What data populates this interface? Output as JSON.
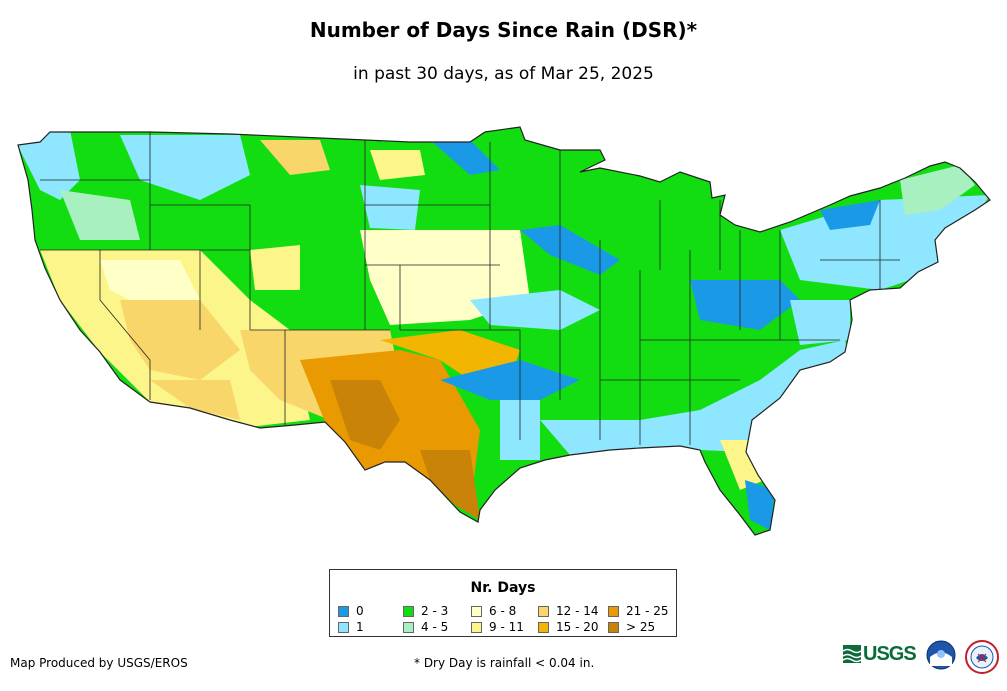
{
  "title": "Number of Days Since Rain (DSR)*",
  "subtitle": "in past 30 days, as of Mar 25, 2025",
  "legend": {
    "title": "Nr. Days",
    "items": [
      {
        "label": "0",
        "color": "#1a9ae6"
      },
      {
        "label": "1",
        "color": "#8ee6ff"
      },
      {
        "label": "2 - 3",
        "color": "#11dd11"
      },
      {
        "label": "4 - 5",
        "color": "#a8f0c0"
      },
      {
        "label": "6 - 8",
        "color": "#ffffc8"
      },
      {
        "label": "9 - 11",
        "color": "#fcf58a"
      },
      {
        "label": "12 - 14",
        "color": "#f8d66a"
      },
      {
        "label": "15 - 20",
        "color": "#f2b600"
      },
      {
        "label": "21 - 25",
        "color": "#e99a00"
      },
      {
        "label": "> 25",
        "color": "#c98309"
      }
    ]
  },
  "credit": "Map Produced by USGS/EROS",
  "footnote": "* Dry Day is rainfall < 0.04 in.",
  "logos": {
    "usgs": "USGS",
    "usgs_color": "#0b6b3a"
  }
}
